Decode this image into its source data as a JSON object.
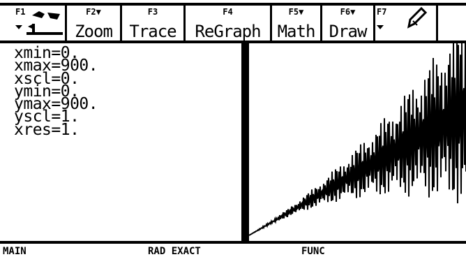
{
  "toolbar": {
    "items": [
      {
        "fkey": "F1",
        "label": ""
      },
      {
        "fkey": "F2▼",
        "label": "Zoom"
      },
      {
        "fkey": "F3",
        "label": "Trace"
      },
      {
        "fkey": "F4",
        "label": "ReGraph"
      },
      {
        "fkey": "F5▼",
        "label": "Math"
      },
      {
        "fkey": "F6▼",
        "label": "Draw"
      },
      {
        "fkey": "F7",
        "label": ""
      }
    ],
    "f1_icon": "tools-menu-icon",
    "f7_icon": "pencil-icon"
  },
  "window_params": [
    "xmin=0.",
    "xmax=900.",
    "xscl=0.",
    "ymin=0.",
    "ymax=900.",
    "yscl=1.",
    "xres=1."
  ],
  "status": {
    "folder": "MAIN",
    "mode": "RAD EXACT",
    "graph_mode": "FUNC"
  }
}
